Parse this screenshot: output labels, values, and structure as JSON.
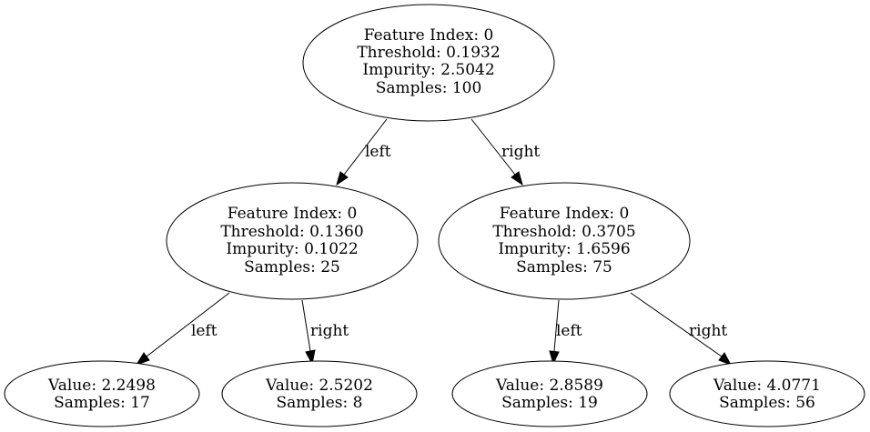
{
  "tree": {
    "root": {
      "feature_index": "Feature Index: 0",
      "threshold": "Threshold: 0.1932",
      "impurity": "Impurity: 2.5042",
      "samples": "Samples: 100"
    },
    "left_split": {
      "feature_index": "Feature Index: 0",
      "threshold": "Threshold: 0.1360",
      "impurity": "Impurity: 0.1022",
      "samples": "Samples: 25"
    },
    "right_split": {
      "feature_index": "Feature Index: 0",
      "threshold": "Threshold: 0.3705",
      "impurity": "Impurity: 1.6596",
      "samples": "Samples: 75"
    },
    "leaf_ll": {
      "value": "Value: 2.2498",
      "samples": "Samples: 17"
    },
    "leaf_lr": {
      "value": "Value: 2.5202",
      "samples": "Samples: 8"
    },
    "leaf_rl": {
      "value": "Value: 2.8589",
      "samples": "Samples: 19"
    },
    "leaf_rr": {
      "value": "Value: 4.0771",
      "samples": "Samples: 56"
    },
    "edges": {
      "root_left": "left",
      "root_right": "right",
      "left_left": "left",
      "left_right": "right",
      "right_left": "left",
      "right_right": "right"
    }
  }
}
